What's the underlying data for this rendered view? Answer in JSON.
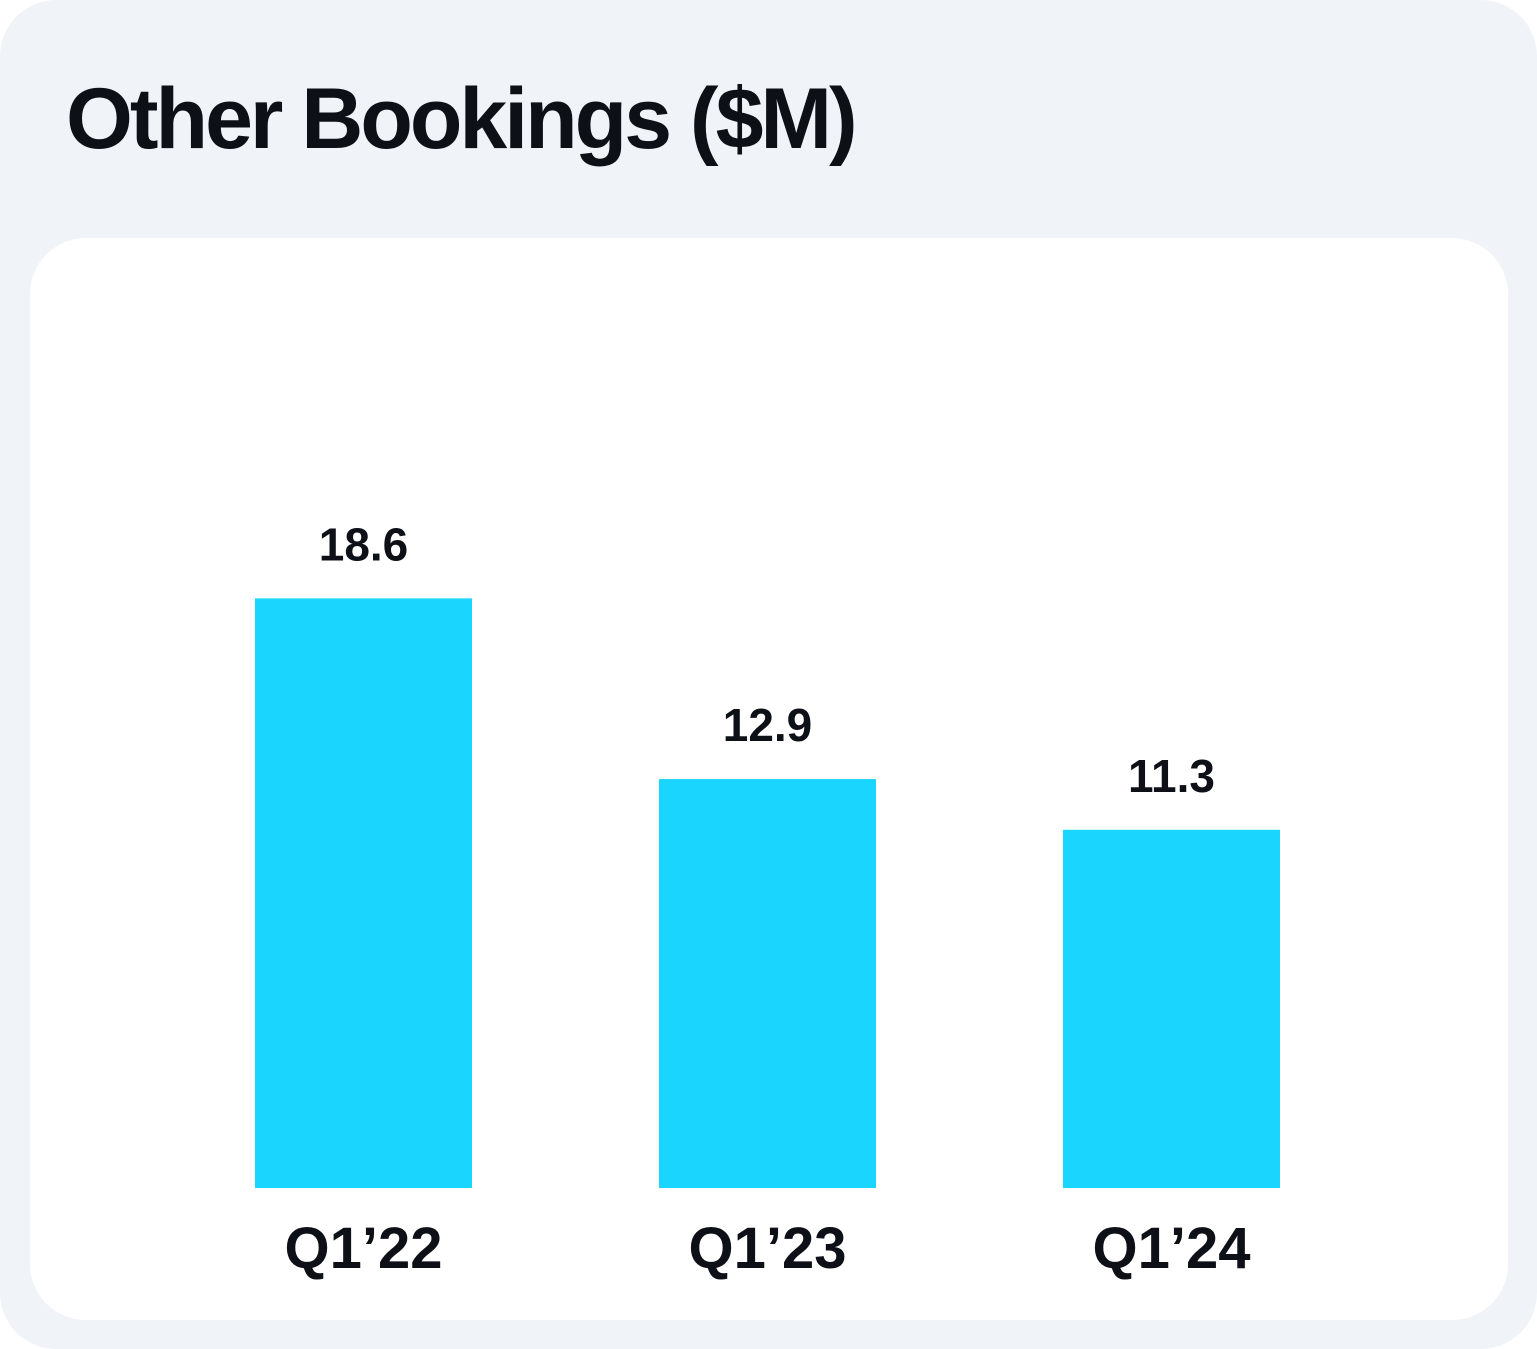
{
  "chart_data": {
    "type": "bar",
    "title": "Other Bookings ($M)",
    "categories": [
      "Q1’22",
      "Q1’23",
      "Q1’24"
    ],
    "values": [
      18.6,
      12.9,
      11.3
    ],
    "value_labels": [
      "18.6",
      "12.9",
      "11.3"
    ],
    "xlabel": "",
    "ylabel": "",
    "ylim": [
      0,
      34
    ],
    "grid": false,
    "bar_color": "#1ad5fe"
  }
}
